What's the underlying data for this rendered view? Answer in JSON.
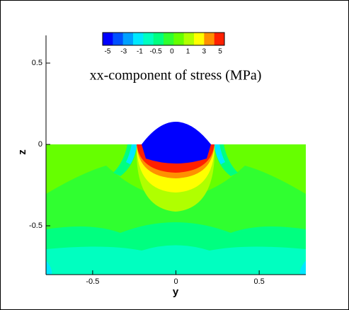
{
  "chart_data": {
    "type": "contour",
    "title": "xx-component of stress (MPa)",
    "x_label": "y",
    "y_label": "z",
    "xlim": [
      -0.78,
      0.78
    ],
    "xticks": [
      -0.5,
      0,
      0.5
    ],
    "ylim": [
      -0.8,
      0.67
    ],
    "yticks": [
      -0.5,
      0,
      0.5
    ],
    "colorbar": {
      "ticks": [
        -5,
        -3,
        -1,
        -0.5,
        0,
        1,
        3,
        5
      ],
      "colors": [
        "#0000ff",
        "#0050ff",
        "#00a0ff",
        "#00e8ff",
        "#00ffc0",
        "#00ff80",
        "#30ff30",
        "#66ff00",
        "#b0ff00",
        "#ffff00",
        "#ff9000",
        "#ff2000"
      ]
    }
  }
}
